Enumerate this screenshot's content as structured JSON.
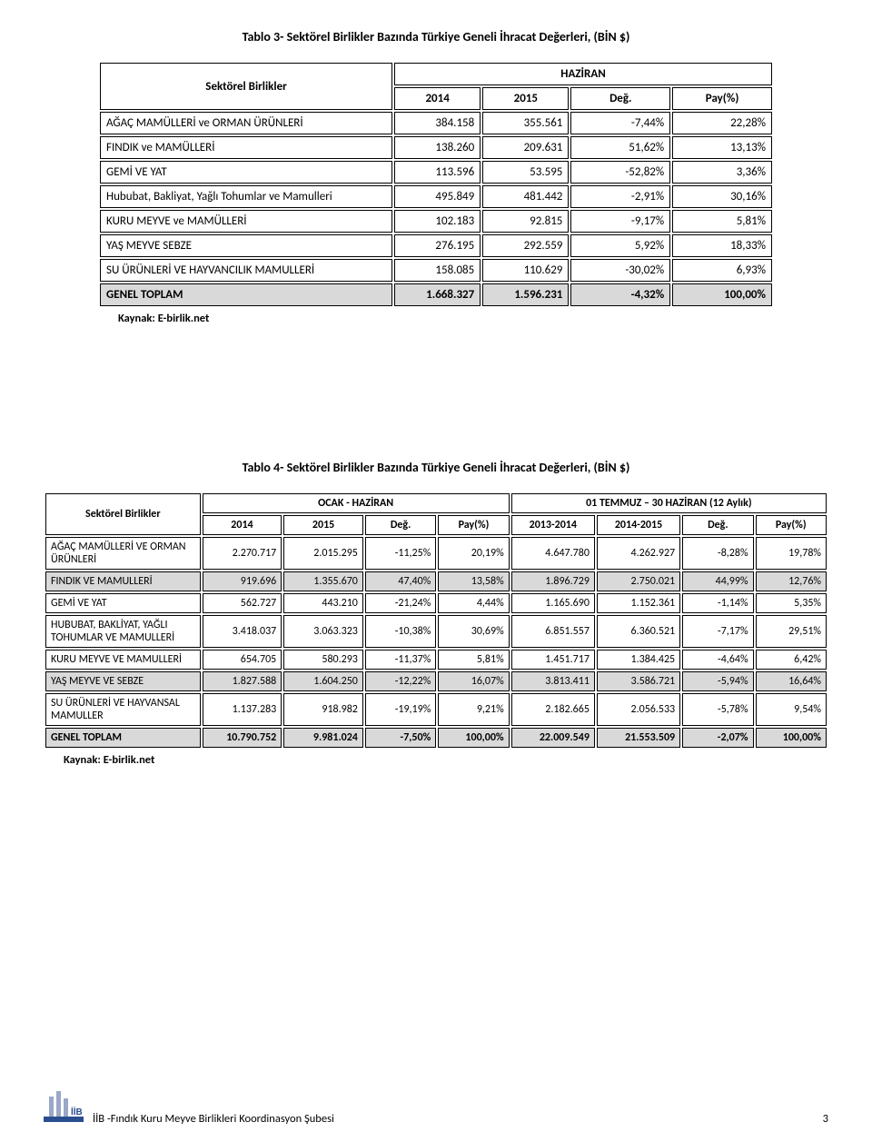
{
  "table1": {
    "title": "Tablo 3- Sektörel Birlikler Bazında Türkiye Geneli İhracat Değerleri, (BİN $)",
    "row_label_header": "Sektörel Birlikler",
    "period_header": "HAZİRAN",
    "col_headers": [
      "2014",
      "2015",
      "Değ.",
      "Pay(%)"
    ],
    "rows": [
      {
        "label": "AĞAÇ MAMÜLLERİ ve ORMAN ÜRÜNLERİ",
        "y1": "384.158",
        "y2": "355.561",
        "chg": "-7,44%",
        "share": "22,28%"
      },
      {
        "label": "FINDIK ve MAMÜLLERİ",
        "y1": "138.260",
        "y2": "209.631",
        "chg": "51,62%",
        "share": "13,13%"
      },
      {
        "label": "GEMİ VE YAT",
        "y1": "113.596",
        "y2": "53.595",
        "chg": "-52,82%",
        "share": "3,36%"
      },
      {
        "label": "Hububat, Bakliyat, Yağlı Tohumlar ve Mamulleri",
        "y1": "495.849",
        "y2": "481.442",
        "chg": "-2,91%",
        "share": "30,16%"
      },
      {
        "label": "KURU MEYVE ve MAMÜLLERİ",
        "y1": "102.183",
        "y2": "92.815",
        "chg": "-9,17%",
        "share": "5,81%"
      },
      {
        "label": "YAŞ MEYVE SEBZE",
        "y1": "276.195",
        "y2": "292.559",
        "chg": "5,92%",
        "share": "18,33%"
      },
      {
        "label": "SU ÜRÜNLERİ VE HAYVANCILIK MAMULLERİ",
        "y1": "158.085",
        "y2": "110.629",
        "chg": "-30,02%",
        "share": "6,93%"
      }
    ],
    "total": {
      "label": "GENEL TOPLAM",
      "y1": "1.668.327",
      "y2": "1.596.231",
      "chg": "-4,32%",
      "share": "100,00%"
    },
    "source": "Kaynak: E-birlik.net"
  },
  "table2": {
    "title": "Tablo 4- Sektörel Birlikler Bazında Türkiye Geneli İhracat Değerleri, (BİN $)",
    "row_label_header": "Sektörel Birlikler",
    "period1_header": "OCAK - HAZİRAN",
    "period2_header": "01 TEMMUZ – 30 HAZİRAN (12 Aylık)",
    "col_headers_p1": [
      "2014",
      "2015",
      "Değ.",
      "Pay(%)"
    ],
    "col_headers_p2": [
      "2013-2014",
      "2014-2015",
      "Değ.",
      "Pay(%)"
    ],
    "rows": [
      {
        "label": "AĞAÇ MAMÜLLERİ VE ORMAN ÜRÜNLERİ",
        "p1y1": "2.270.717",
        "p1y2": "2.015.295",
        "p1chg": "-11,25%",
        "p1share": "20,19%",
        "p2y1": "4.647.780",
        "p2y2": "4.262.927",
        "p2chg": "-8,28%",
        "p2share": "19,78%"
      },
      {
        "label": "FINDIK VE MAMULLERİ",
        "p1y1": "919.696",
        "p1y2": "1.355.670",
        "p1chg": "47,40%",
        "p1share": "13,58%",
        "p2y1": "1.896.729",
        "p2y2": "2.750.021",
        "p2chg": "44,99%",
        "p2share": "12,76%"
      },
      {
        "label": "GEMİ VE YAT",
        "p1y1": "562.727",
        "p1y2": "443.210",
        "p1chg": "-21,24%",
        "p1share": "4,44%",
        "p2y1": "1.165.690",
        "p2y2": "1.152.361",
        "p2chg": "-1,14%",
        "p2share": "5,35%"
      },
      {
        "label": "HUBUBAT, BAKLİYAT, YAĞLI TOHUMLAR VE MAMULLERİ",
        "p1y1": "3.418.037",
        "p1y2": "3.063.323",
        "p1chg": "-10,38%",
        "p1share": "30,69%",
        "p2y1": "6.851.557",
        "p2y2": "6.360.521",
        "p2chg": "-7,17%",
        "p2share": "29,51%"
      },
      {
        "label": "KURU MEYVE VE MAMULLERİ",
        "p1y1": "654.705",
        "p1y2": "580.293",
        "p1chg": "-11,37%",
        "p1share": "5,81%",
        "p2y1": "1.451.717",
        "p2y2": "1.384.425",
        "p2chg": "-4,64%",
        "p2share": "6,42%"
      },
      {
        "label": "YAŞ MEYVE VE SEBZE",
        "p1y1": "1.827.588",
        "p1y2": "1.604.250",
        "p1chg": "-12,22%",
        "p1share": "16,07%",
        "p2y1": "3.813.411",
        "p2y2": "3.586.721",
        "p2chg": "-5,94%",
        "p2share": "16,64%"
      },
      {
        "label": "SU ÜRÜNLERİ VE HAYVANSAL MAMULLER",
        "p1y1": "1.137.283",
        "p1y2": "918.982",
        "p1chg": "-19,19%",
        "p1share": "9,21%",
        "p2y1": "2.182.665",
        "p2y2": "2.056.533",
        "p2chg": "-5,78%",
        "p2share": "9,54%"
      }
    ],
    "total": {
      "label": "GENEL TOPLAM",
      "p1y1": "10.790.752",
      "p1y2": "9.981.024",
      "p1chg": "-7,50%",
      "p1share": "100,00%",
      "p2y1": "22.009.549",
      "p2y2": "21.553.509",
      "p2chg": "-2,07%",
      "p2share": "100,00%"
    },
    "source": "Kaynak: E-birlik.net"
  },
  "footer": {
    "org": "İİB -Fındık Kuru Meyve Birlikleri Koordinasyon Şubesi",
    "page": "3",
    "logo_text": "İİB"
  },
  "style": {
    "shade_color": "#d9d9d9",
    "border_color": "#000000",
    "font_family": "Calibri, Arial, sans-serif"
  }
}
